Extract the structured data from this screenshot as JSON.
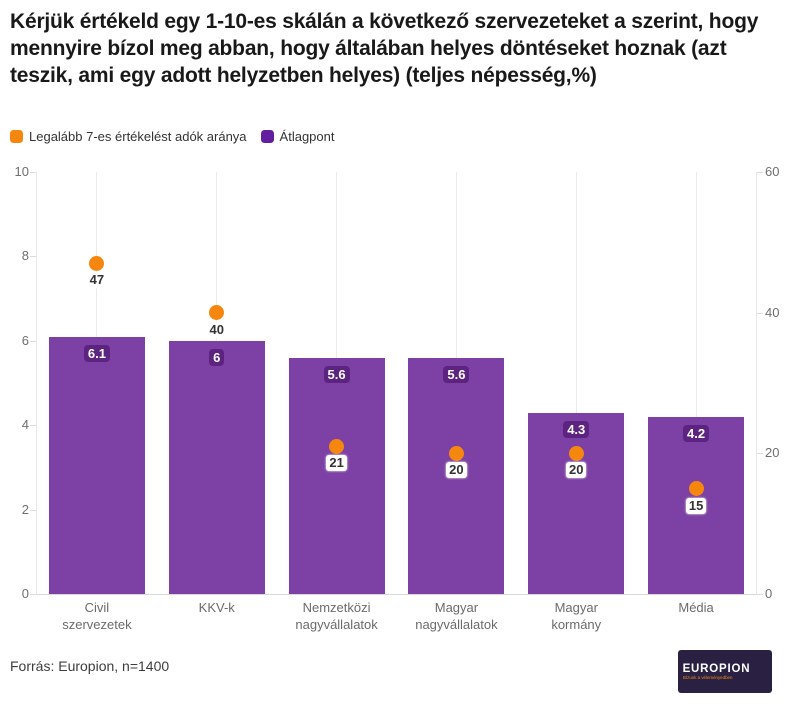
{
  "chart_data": {
    "type": "bar",
    "title": "Kérjük értékeld egy 1-10-es skálán a következő szervezeteket a szerint, hogy mennyire bízol meg abban, hogy általában helyes döntéseket hoznak (azt teszik, ami egy adott helyzetben helyes) (teljes népesség,%)",
    "categories": [
      "Civil\nszervezetek",
      "KKV-k",
      "Nemzetközi\nnagyvállalatok",
      "Magyar\nnagyvállalatok",
      "Magyar\nkormány",
      "Média"
    ],
    "series": [
      {
        "name": "Átlagpont",
        "type": "bar",
        "axis": "left",
        "color": "#7d41a6",
        "label_halo_color": "#5c2480",
        "values": [
          6.1,
          6,
          5.6,
          5.6,
          4.3,
          4.2
        ],
        "labels": [
          "6.1",
          "6",
          "5.6",
          "5.6",
          "4.3",
          "4.2"
        ]
      },
      {
        "name": "Legalább 7-es értékelést adók aránya",
        "type": "scatter",
        "axis": "right",
        "color": "#f5870e",
        "values": [
          47,
          40,
          21,
          20,
          20,
          15
        ],
        "labels": [
          "47",
          "40",
          "21",
          "20",
          "20",
          "15"
        ]
      }
    ],
    "left_axis": {
      "min": 0,
      "max": 10,
      "ticks": [
        0,
        2,
        4,
        6,
        8,
        10
      ]
    },
    "right_axis": {
      "min": 0,
      "max": 60,
      "ticks": [
        0,
        20,
        40,
        60
      ]
    },
    "grid": "vertical-category-lines",
    "legend_position": "top-left"
  },
  "legend": {
    "items": [
      {
        "label": "Legalább 7-es értékelést adók aránya",
        "color": "#f5870e"
      },
      {
        "label": "Átlagpont",
        "color": "#611fa0"
      }
    ]
  },
  "footer": {
    "source": "Forrás: Europion, n=1400"
  },
  "logo": {
    "brand": "EUROPION",
    "tagline": "Bízunk a véleményedben",
    "background": "#2a2142",
    "accent": "#f5870e"
  }
}
